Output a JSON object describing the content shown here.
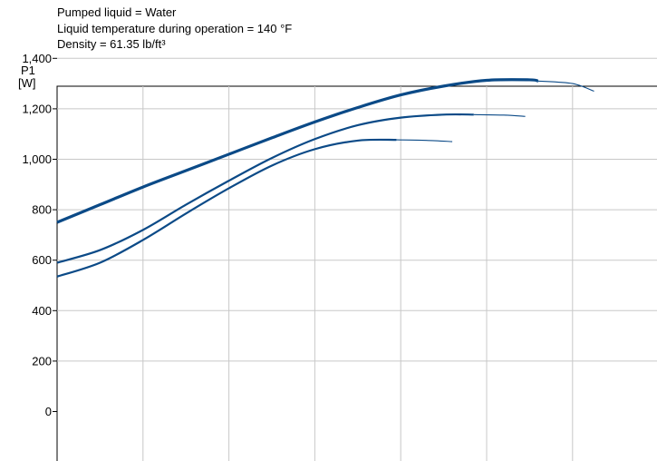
{
  "header": {
    "line1": "Pumped liquid = Water",
    "line2": "Liquid temperature during operation = 140 °F",
    "line3": "Density = 61.35 lb/ft³"
  },
  "chart_data": {
    "type": "line",
    "title": "",
    "ylabel_line1": "P1",
    "ylabel_line2": "[W]",
    "xlabel": "",
    "ylim": [
      0,
      1600
    ],
    "xlim": [
      0,
      7
    ],
    "y_ticks": [
      0,
      200,
      400,
      600,
      800,
      1000,
      1200,
      1400
    ],
    "y_tick_labels": [
      "0",
      "200",
      "400",
      "600",
      "800",
      "1,000",
      "1,200",
      "1,400"
    ],
    "x_gridlines": [
      1,
      2,
      3,
      4,
      5,
      6
    ],
    "grid": true,
    "colors": {
      "curve": "#0b4a87",
      "grid": "#c8c8c8",
      "axis": "#000000"
    },
    "series": [
      {
        "id": "top",
        "heavy_x": [
          0,
          0.5,
          1,
          1.5,
          2,
          2.5,
          3,
          3.5,
          4,
          4.5,
          5,
          5.5,
          5.6
        ],
        "heavy_y": [
          750,
          820,
          890,
          955,
          1020,
          1085,
          1148,
          1205,
          1255,
          1290,
          1313,
          1315,
          1310
        ],
        "tail_x": [
          5.6,
          6.0,
          6.25
        ],
        "tail_y": [
          1310,
          1300,
          1270
        ]
      },
      {
        "id": "middle",
        "heavy_x": [
          0,
          0.5,
          1,
          1.5,
          2,
          2.5,
          3,
          3.5,
          4,
          4.5,
          4.85
        ],
        "heavy_y": [
          590,
          640,
          720,
          820,
          915,
          1005,
          1080,
          1135,
          1165,
          1177,
          1177
        ],
        "tail_x": [
          4.85,
          5.2,
          5.45
        ],
        "tail_y": [
          1177,
          1175,
          1170
        ]
      },
      {
        "id": "bottom",
        "heavy_x": [
          0,
          0.5,
          1,
          1.5,
          2,
          2.5,
          3,
          3.5,
          3.95
        ],
        "heavy_y": [
          535,
          590,
          680,
          785,
          885,
          975,
          1040,
          1074,
          1077
        ],
        "tail_x": [
          3.95,
          4.3,
          4.6
        ],
        "tail_y": [
          1077,
          1075,
          1070
        ]
      }
    ]
  }
}
